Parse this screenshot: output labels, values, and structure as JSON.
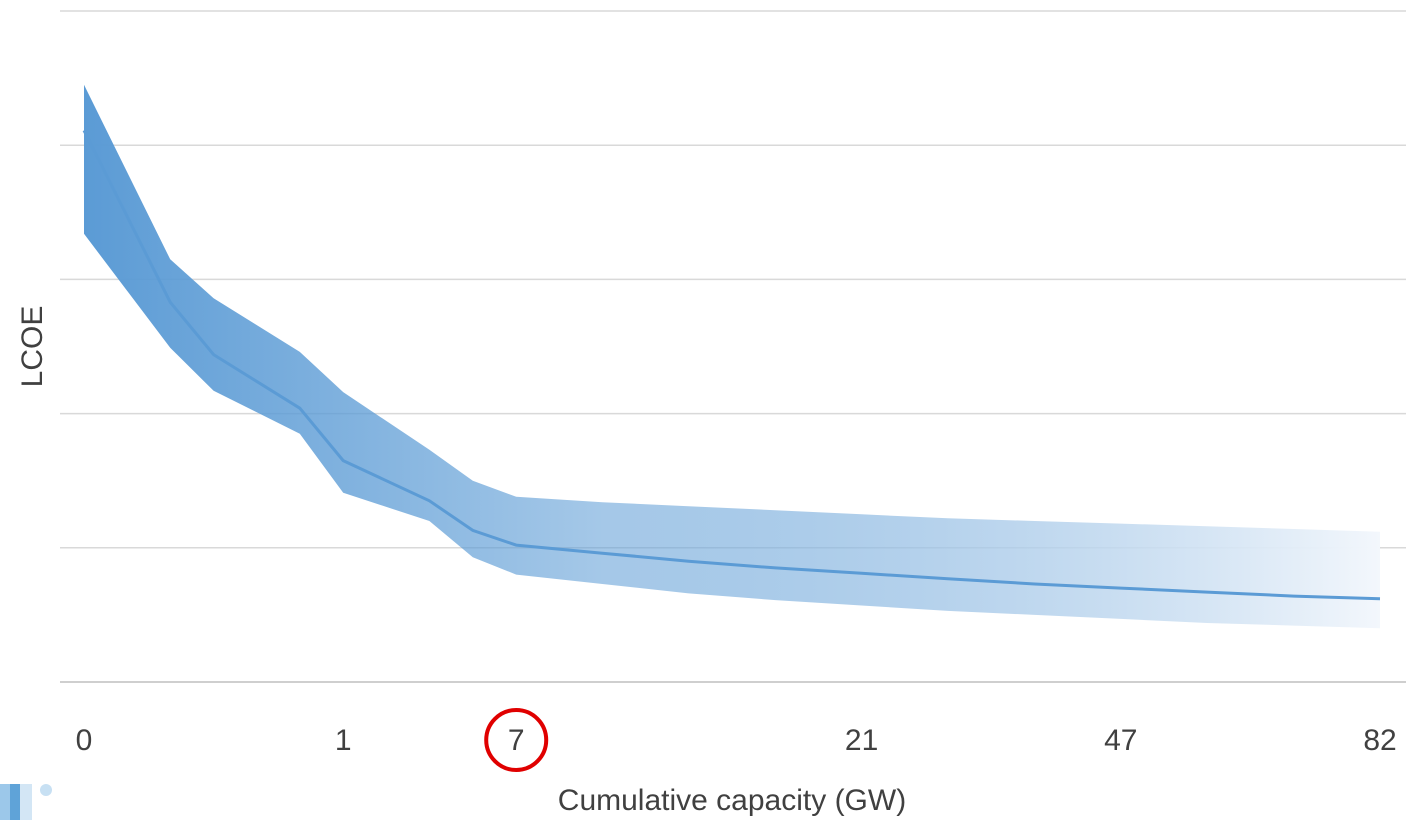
{
  "chart_data": {
    "type": "area",
    "title": "",
    "xlabel": "Cumulative capacity (GW)",
    "ylabel": "LCOE",
    "x_tick_labels": [
      "0",
      "1",
      "7",
      "21",
      "47",
      "82"
    ],
    "highlighted_tick": "7",
    "y_tick_labels_shown": false,
    "ylim": [
      0,
      5
    ],
    "grid": true,
    "legend": "none",
    "series": [
      {
        "role": "central",
        "values": [
          4.11,
          2.83,
          2.44,
          2.04,
          1.65,
          1.35,
          1.13,
          1.02,
          0.96,
          0.9,
          0.85,
          0.81,
          0.77,
          0.73,
          0.7,
          0.67,
          0.64,
          0.62
        ]
      },
      {
        "role": "upper",
        "values": [
          4.45,
          3.15,
          2.86,
          2.46,
          2.16,
          1.73,
          1.5,
          1.38,
          1.34,
          1.31,
          1.28,
          1.25,
          1.22,
          1.2,
          1.18,
          1.16,
          1.14,
          1.12
        ]
      },
      {
        "role": "lower",
        "values": [
          3.34,
          2.49,
          2.17,
          1.85,
          1.41,
          1.2,
          0.93,
          0.8,
          0.73,
          0.66,
          0.61,
          0.57,
          0.53,
          0.5,
          0.47,
          0.44,
          0.42,
          0.4
        ]
      }
    ],
    "x_positions": [
      0,
      1.33,
      2,
      3.33,
      4,
      5.33,
      6,
      6.67,
      8,
      9.33,
      10.67,
      12,
      13.33,
      14.67,
      16,
      17.33,
      18.67,
      20
    ],
    "x_tick_positions": [
      0,
      4,
      6.67,
      12,
      16,
      20
    ],
    "colors": {
      "band_start": "#5b9bd5",
      "band_end": "#f3f7fc",
      "line": "#5b9bd5",
      "circle": "#e00000"
    }
  }
}
